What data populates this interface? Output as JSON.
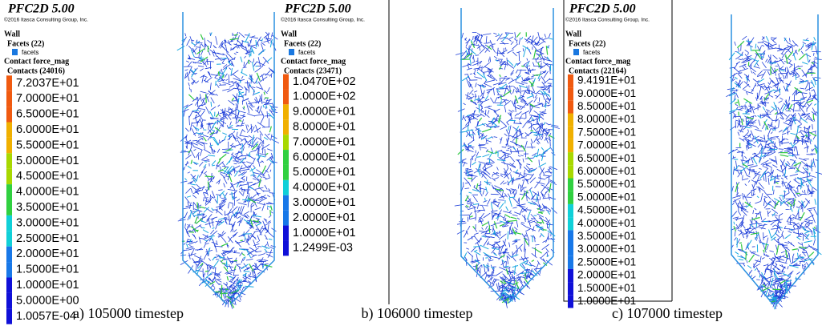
{
  "panels": [
    {
      "header": {
        "title": "PFC2D 5.00",
        "copyright": "©2016 Itasca Consulting Group, Inc."
      },
      "wall": "Wall",
      "facets": "Facets (22)",
      "facets_item": "facets",
      "contact_label": "Contact force_mag",
      "contacts": "Contacts (24016)",
      "legend": [
        "7.2037E+01",
        "7.0000E+01",
        "6.5000E+01",
        "6.0000E+01",
        "5.5000E+01",
        "5.0000E+01",
        "4.5000E+01",
        "4.0000E+01",
        "3.5000E+01",
        "3.0000E+01",
        "2.5000E+01",
        "2.0000E+01",
        "1.5000E+01",
        "1.0000E+01",
        "5.0000E+00",
        "1.0057E-04"
      ],
      "caption": "a) 105000 timestep"
    },
    {
      "header": {
        "title": "PFC2D 5.00",
        "copyright": "©2016 Itasca Consulting Group, Inc."
      },
      "wall": "Wall",
      "facets": "Facets (22)",
      "facets_item": "facets",
      "contact_label": "Contact force_mag",
      "contacts": "Contacts (23471)",
      "legend": [
        "1.0470E+02",
        "1.0000E+02",
        "9.0000E+01",
        "8.0000E+01",
        "7.0000E+01",
        "6.0000E+01",
        "5.0000E+01",
        "4.0000E+01",
        "3.0000E+01",
        "2.0000E+01",
        "1.0000E+01",
        "1.2499E-03"
      ],
      "caption": "b) 106000 timestep"
    },
    {
      "header": {
        "title": "PFC2D 5.00",
        "copyright": "©2016 Itasca Consulting Group, Inc."
      },
      "wall": "Wall",
      "facets": "Facets (22)",
      "facets_item": "facets",
      "contact_label": "Contact force_mag",
      "contacts": "Contacts (22164)",
      "legend": [
        "9.4191E+01",
        "9.0000E+01",
        "8.5000E+01",
        "8.0000E+01",
        "7.5000E+01",
        "7.0000E+01",
        "6.5000E+01",
        "6.0000E+01",
        "5.5000E+01",
        "5.0000E+01",
        "4.5000E+01",
        "4.0000E+01",
        "3.5000E+01",
        "3.0000E+01",
        "2.5000E+01",
        "2.0000E+01",
        "1.5000E+01",
        "1.0000E+01"
      ],
      "caption": "c) 107000 timestep"
    }
  ]
}
